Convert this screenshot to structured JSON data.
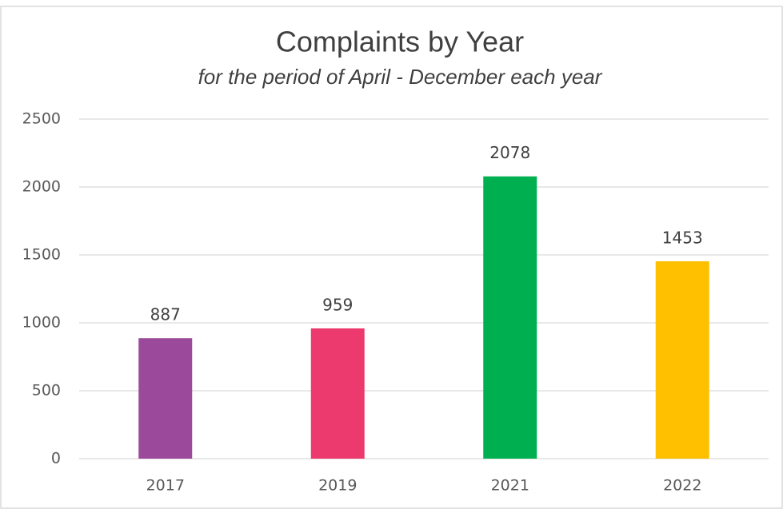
{
  "chart_data": {
    "type": "bar",
    "title": "Complaints by Year",
    "subtitle": "for the period of April - December each year",
    "categories": [
      "2017",
      "2019",
      "2021",
      "2022"
    ],
    "values": [
      887,
      959,
      2078,
      1453
    ],
    "colors": [
      "#9b4a9b",
      "#ec3a6e",
      "#00b050",
      "#ffc000"
    ],
    "ylim": [
      0,
      2500
    ],
    "yticks": [
      0,
      500,
      1000,
      1500,
      2000,
      2500
    ],
    "grid": true
  }
}
